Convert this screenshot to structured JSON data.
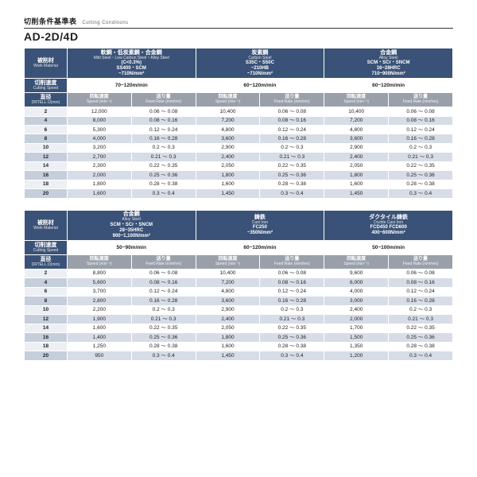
{
  "page": {
    "subtitle_jp": "切削条件基準表",
    "subtitle_en": "Cutting Conditions",
    "title": "AD-2D/4D"
  },
  "labels": {
    "work_material_jp": "被削材",
    "work_material_en": "Work\nMaterial",
    "cutting_speed_jp": "切削速度",
    "cutting_speed_en": "Cutting Speed",
    "diameter_jp": "直径",
    "diameter_en": "DRTELL\nD(mm)",
    "spindle_jp": "回転速度",
    "spindle_en": "Speed\n(min⁻¹)",
    "feed_jp": "送り量",
    "feed_en": "Feed Rate\n(mm/rev)"
  },
  "colors": {
    "navy": "#3a5277",
    "sub_grey": "#9aa0aa",
    "row_alt": "#d7dde7",
    "diam_alt_a": "#eceff3",
    "diam_alt_b": "#c5cedb"
  },
  "tables": [
    {
      "materials": [
        {
          "jp": "軟鋼・低炭素鋼・合金鋼",
          "en": "Mild Steel・Low Carbon Steel・Alloy Steel",
          "line2": "(C<0.3%)",
          "line3": "SS400・SCM",
          "hardness": "~710N/mm²",
          "speed": "70~120m/min"
        },
        {
          "jp": "炭素鋼",
          "en": "Carbon Steel",
          "line2": "S35C・S50C",
          "line3": "~210HB",
          "hardness": "~710N/mm²",
          "speed": "60~120m/min"
        },
        {
          "jp": "合金鋼",
          "en": "Alloy Steel",
          "line2": "SCM・SCr・SNCM",
          "line3": "16~28HRC",
          "hardness": "710~900N/mm²",
          "speed": "60~120m/min"
        }
      ],
      "rows": [
        {
          "d": "2",
          "c": [
            [
              "12,000",
              "0.06 ～ 0.08"
            ],
            [
              "10,400",
              "0.06 ～ 0.08"
            ],
            [
              "10,400",
              "0.06 ～ 0.08"
            ]
          ]
        },
        {
          "d": "4",
          "c": [
            [
              "8,000",
              "0.08 ～ 0.16"
            ],
            [
              "7,200",
              "0.08 ～ 0.16"
            ],
            [
              "7,200",
              "0.08 ～ 0.16"
            ]
          ]
        },
        {
          "d": "6",
          "c": [
            [
              "5,300",
              "0.12 ～ 0.24"
            ],
            [
              "4,800",
              "0.12 ～ 0.24"
            ],
            [
              "4,800",
              "0.12 ～ 0.24"
            ]
          ]
        },
        {
          "d": "8",
          "c": [
            [
              "4,000",
              "0.16 ～ 0.28"
            ],
            [
              "3,600",
              "0.16 ～ 0.28"
            ],
            [
              "3,600",
              "0.16 ～ 0.28"
            ]
          ]
        },
        {
          "d": "10",
          "c": [
            [
              "3,200",
              "0.2 ～ 0.3"
            ],
            [
              "2,900",
              "0.2 ～ 0.3"
            ],
            [
              "2,900",
              "0.2 ～ 0.3"
            ]
          ]
        },
        {
          "d": "12",
          "c": [
            [
              "2,700",
              "0.21 ～ 0.3"
            ],
            [
              "2,400",
              "0.21 ～ 0.3"
            ],
            [
              "2,400",
              "0.21 ～ 0.3"
            ]
          ]
        },
        {
          "d": "14",
          "c": [
            [
              "2,300",
              "0.22 ～ 0.35"
            ],
            [
              "2,050",
              "0.22 ～ 0.35"
            ],
            [
              "2,050",
              "0.22 ～ 0.35"
            ]
          ]
        },
        {
          "d": "16",
          "c": [
            [
              "2,000",
              "0.25 ～ 0.36"
            ],
            [
              "1,800",
              "0.25 ～ 0.36"
            ],
            [
              "1,800",
              "0.25 ～ 0.36"
            ]
          ]
        },
        {
          "d": "18",
          "c": [
            [
              "1,800",
              "0.28 ～ 0.38"
            ],
            [
              "1,600",
              "0.28 ～ 0.38"
            ],
            [
              "1,600",
              "0.28 ～ 0.38"
            ]
          ]
        },
        {
          "d": "20",
          "c": [
            [
              "1,600",
              "0.3 ～ 0.4"
            ],
            [
              "1,450",
              "0.3 ～ 0.4"
            ],
            [
              "1,450",
              "0.3 ～ 0.4"
            ]
          ]
        }
      ]
    },
    {
      "materials": [
        {
          "jp": "合金鋼",
          "en": "Alloy Steel",
          "line2": "SCM・SCr・SNCM",
          "line3": "28~35HRC",
          "hardness": "900~1,100N/mm²",
          "speed": "50~90m/min"
        },
        {
          "jp": "鋳鉄",
          "en": "Cast Iron",
          "line2": "FC250",
          "line3": "~350N/mm²",
          "hardness": "",
          "speed": "60~120m/min"
        },
        {
          "jp": "ダクタイル鋳鉄",
          "en": "Ductile Cast Iron",
          "line2": "FCD450\nFCD600",
          "line3": "400~600N/mm²",
          "hardness": "",
          "speed": "50~100m/min"
        }
      ],
      "rows": [
        {
          "d": "2",
          "c": [
            [
              "8,800",
              "0.06 ～ 0.08"
            ],
            [
              "10,400",
              "0.06 ～ 0.08"
            ],
            [
              "9,600",
              "0.06 ～ 0.08"
            ]
          ]
        },
        {
          "d": "4",
          "c": [
            [
              "5,600",
              "0.08 ～ 0.16"
            ],
            [
              "7,200",
              "0.08 ～ 0.16"
            ],
            [
              "6,000",
              "0.08 ～ 0.16"
            ]
          ]
        },
        {
          "d": "6",
          "c": [
            [
              "3,700",
              "0.12 ～ 0.24"
            ],
            [
              "4,800",
              "0.12 ～ 0.24"
            ],
            [
              "4,000",
              "0.12 ～ 0.24"
            ]
          ]
        },
        {
          "d": "8",
          "c": [
            [
              "2,800",
              "0.16 ～ 0.28"
            ],
            [
              "3,600",
              "0.16 ～ 0.28"
            ],
            [
              "3,000",
              "0.16 ～ 0.28"
            ]
          ]
        },
        {
          "d": "10",
          "c": [
            [
              "2,200",
              "0.2 ～ 0.3"
            ],
            [
              "2,900",
              "0.2 ～ 0.3"
            ],
            [
              "2,400",
              "0.2 ～ 0.3"
            ]
          ]
        },
        {
          "d": "12",
          "c": [
            [
              "1,900",
              "0.21 ～ 0.3"
            ],
            [
              "2,400",
              "0.21 ～ 0.3"
            ],
            [
              "2,000",
              "0.21 ～ 0.3"
            ]
          ]
        },
        {
          "d": "14",
          "c": [
            [
              "1,600",
              "0.22 ～ 0.35"
            ],
            [
              "2,050",
              "0.22 ～ 0.35"
            ],
            [
              "1,700",
              "0.22 ～ 0.35"
            ]
          ]
        },
        {
          "d": "16",
          "c": [
            [
              "1,400",
              "0.25 ～ 0.36"
            ],
            [
              "1,800",
              "0.25 ～ 0.36"
            ],
            [
              "1,500",
              "0.25 ～ 0.36"
            ]
          ]
        },
        {
          "d": "18",
          "c": [
            [
              "1,250",
              "0.28 ～ 0.38"
            ],
            [
              "1,600",
              "0.28 ～ 0.38"
            ],
            [
              "1,350",
              "0.28 ～ 0.38"
            ]
          ]
        },
        {
          "d": "20",
          "c": [
            [
              "950",
              "0.3 ～ 0.4"
            ],
            [
              "1,450",
              "0.3 ～ 0.4"
            ],
            [
              "1,200",
              "0.3 ～ 0.4"
            ]
          ]
        }
      ]
    }
  ]
}
